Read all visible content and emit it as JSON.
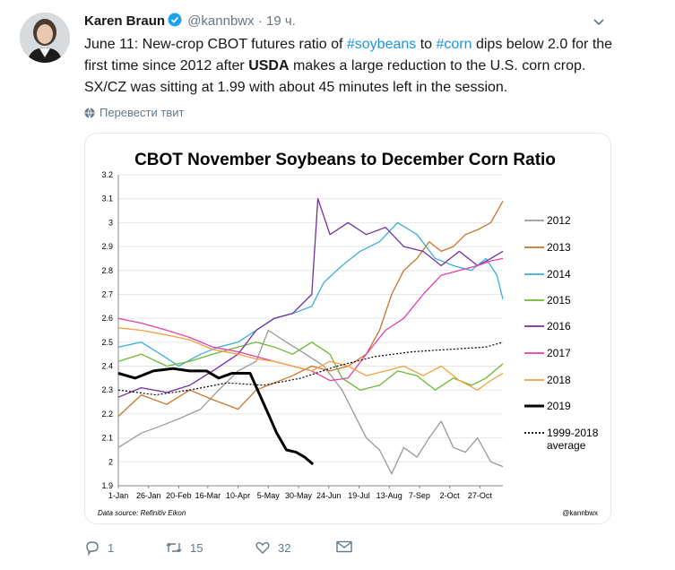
{
  "tweet": {
    "author_name": "Karen Braun",
    "handle": "@kannbwx",
    "time": "· 19 ч.",
    "text": {
      "p1": "June 11: New-crop CBOT futures ratio of ",
      "tag1": "#soybeans",
      "p2": " to ",
      "tag2": "#corn",
      "p3": " dips below 2.0 for the first time since 2012 after ",
      "bold": "USDA",
      "p4": " makes a large reduction to the U.S. corn crop. SX/CZ was sitting at 1.99 with about 45 minutes left in the session."
    },
    "translate_label": "Перевести твит",
    "actions": {
      "replies": "1",
      "retweets": "15",
      "likes": "32"
    }
  },
  "colors": {
    "link": "#1b95e0",
    "muted": "#657786",
    "verified": "#1da1f2"
  },
  "chart_data": {
    "type": "line",
    "title": "CBOT November Soybeans to December Corn Ratio",
    "source": "Data source: Refinitiv Eikon",
    "credit": "@kannbwx",
    "ylim": [
      1.9,
      3.2
    ],
    "yticks": [
      "1.9",
      "2",
      "2.1",
      "2.2",
      "2.3",
      "2.4",
      "2.5",
      "2.6",
      "2.7",
      "2.8",
      "2.9",
      "3",
      "3.1",
      "3.2"
    ],
    "xticks": [
      "1-Jan",
      "26-Jan",
      "20-Feb",
      "16-Mar",
      "10-Apr",
      "5-May",
      "30-May",
      "24-Jun",
      "19-Jul",
      "13-Aug",
      "7-Sep",
      "2-Oct",
      "27-Oct"
    ],
    "x_start": "2019-01-01",
    "x_end": "2019-11-15",
    "legend_position": "right",
    "series": [
      {
        "name": "2012",
        "color": "#999999",
        "width": 1.3,
        "dash": "",
        "points": [
          [
            "01-01",
            2.06
          ],
          [
            "01-20",
            2.12
          ],
          [
            "02-05",
            2.15
          ],
          [
            "02-20",
            2.18
          ],
          [
            "03-10",
            2.22
          ],
          [
            "03-25",
            2.3
          ],
          [
            "04-10",
            2.38
          ],
          [
            "04-25",
            2.42
          ],
          [
            "05-05",
            2.55
          ],
          [
            "05-20",
            2.5
          ],
          [
            "06-05",
            2.45
          ],
          [
            "06-20",
            2.4
          ],
          [
            "07-05",
            2.3
          ],
          [
            "07-15",
            2.2
          ],
          [
            "07-25",
            2.1
          ],
          [
            "08-05",
            2.05
          ],
          [
            "08-15",
            1.95
          ],
          [
            "08-25",
            2.06
          ],
          [
            "09-05",
            2.02
          ],
          [
            "09-15",
            2.1
          ],
          [
            "09-25",
            2.17
          ],
          [
            "10-05",
            2.06
          ],
          [
            "10-15",
            2.04
          ],
          [
            "10-25",
            2.1
          ],
          [
            "11-05",
            2.0
          ],
          [
            "11-15",
            1.98
          ]
        ]
      },
      {
        "name": "2013",
        "color": "#c8752b",
        "width": 1.3,
        "dash": "",
        "points": [
          [
            "01-01",
            2.19
          ],
          [
            "01-20",
            2.28
          ],
          [
            "02-10",
            2.24
          ],
          [
            "03-01",
            2.3
          ],
          [
            "03-20",
            2.26
          ],
          [
            "04-10",
            2.22
          ],
          [
            "04-25",
            2.3
          ],
          [
            "05-10",
            2.33
          ],
          [
            "05-25",
            2.36
          ],
          [
            "06-10",
            2.4
          ],
          [
            "06-25",
            2.38
          ],
          [
            "07-10",
            2.4
          ],
          [
            "07-25",
            2.45
          ],
          [
            "08-05",
            2.55
          ],
          [
            "08-15",
            2.7
          ],
          [
            "08-25",
            2.8
          ],
          [
            "09-05",
            2.85
          ],
          [
            "09-15",
            2.92
          ],
          [
            "09-25",
            2.88
          ],
          [
            "10-05",
            2.9
          ],
          [
            "10-15",
            2.95
          ],
          [
            "10-25",
            2.97
          ],
          [
            "11-05",
            3.0
          ],
          [
            "11-15",
            3.09
          ]
        ]
      },
      {
        "name": "2014",
        "color": "#3aaed8",
        "width": 1.3,
        "dash": "",
        "points": [
          [
            "01-01",
            2.48
          ],
          [
            "01-20",
            2.5
          ],
          [
            "02-05",
            2.45
          ],
          [
            "02-20",
            2.4
          ],
          [
            "03-10",
            2.45
          ],
          [
            "03-25",
            2.48
          ],
          [
            "04-10",
            2.5
          ],
          [
            "04-25",
            2.55
          ],
          [
            "05-10",
            2.6
          ],
          [
            "05-25",
            2.62
          ],
          [
            "06-10",
            2.65
          ],
          [
            "06-20",
            2.75
          ],
          [
            "07-05",
            2.82
          ],
          [
            "07-20",
            2.88
          ],
          [
            "08-05",
            2.92
          ],
          [
            "08-20",
            3.0
          ],
          [
            "09-05",
            2.95
          ],
          [
            "09-20",
            2.85
          ],
          [
            "10-05",
            2.82
          ],
          [
            "10-20",
            2.8
          ],
          [
            "11-01",
            2.85
          ],
          [
            "11-10",
            2.78
          ],
          [
            "11-15",
            2.68
          ]
        ]
      },
      {
        "name": "2015",
        "color": "#6ab934",
        "width": 1.3,
        "dash": "",
        "points": [
          [
            "01-01",
            2.42
          ],
          [
            "01-20",
            2.45
          ],
          [
            "02-10",
            2.4
          ],
          [
            "03-01",
            2.42
          ],
          [
            "03-20",
            2.45
          ],
          [
            "04-10",
            2.48
          ],
          [
            "04-25",
            2.5
          ],
          [
            "05-10",
            2.48
          ],
          [
            "05-25",
            2.45
          ],
          [
            "06-10",
            2.5
          ],
          [
            "06-25",
            2.45
          ],
          [
            "07-05",
            2.35
          ],
          [
            "07-20",
            2.3
          ],
          [
            "08-05",
            2.32
          ],
          [
            "08-20",
            2.38
          ],
          [
            "09-05",
            2.36
          ],
          [
            "09-20",
            2.3
          ],
          [
            "10-05",
            2.35
          ],
          [
            "10-20",
            2.32
          ],
          [
            "11-01",
            2.35
          ],
          [
            "11-15",
            2.41
          ]
        ]
      },
      {
        "name": "2016",
        "color": "#7030a0",
        "width": 1.3,
        "dash": "",
        "points": [
          [
            "01-01",
            2.27
          ],
          [
            "01-20",
            2.31
          ],
          [
            "02-10",
            2.29
          ],
          [
            "03-01",
            2.32
          ],
          [
            "03-20",
            2.38
          ],
          [
            "04-10",
            2.45
          ],
          [
            "04-25",
            2.55
          ],
          [
            "05-10",
            2.6
          ],
          [
            "05-25",
            2.62
          ],
          [
            "06-10",
            2.7
          ],
          [
            "06-15",
            3.1
          ],
          [
            "06-25",
            2.95
          ],
          [
            "07-10",
            3.0
          ],
          [
            "07-25",
            2.95
          ],
          [
            "08-10",
            2.98
          ],
          [
            "08-25",
            2.9
          ],
          [
            "09-10",
            2.88
          ],
          [
            "09-25",
            2.82
          ],
          [
            "10-10",
            2.88
          ],
          [
            "10-25",
            2.82
          ],
          [
            "11-05",
            2.85
          ],
          [
            "11-15",
            2.88
          ]
        ]
      },
      {
        "name": "2017",
        "color": "#e63fa6",
        "width": 1.3,
        "dash": "",
        "points": [
          [
            "01-01",
            2.6
          ],
          [
            "01-20",
            2.58
          ],
          [
            "02-10",
            2.55
          ],
          [
            "03-01",
            2.52
          ],
          [
            "03-20",
            2.48
          ],
          [
            "04-10",
            2.46
          ],
          [
            "04-25",
            2.44
          ],
          [
            "05-10",
            2.42
          ],
          [
            "05-25",
            2.4
          ],
          [
            "06-10",
            2.38
          ],
          [
            "06-25",
            2.34
          ],
          [
            "07-10",
            2.35
          ],
          [
            "07-25",
            2.45
          ],
          [
            "08-10",
            2.55
          ],
          [
            "08-25",
            2.6
          ],
          [
            "09-10",
            2.7
          ],
          [
            "09-25",
            2.78
          ],
          [
            "10-10",
            2.8
          ],
          [
            "10-25",
            2.82
          ],
          [
            "11-05",
            2.84
          ],
          [
            "11-15",
            2.85
          ]
        ]
      },
      {
        "name": "2018",
        "color": "#f5a040",
        "width": 1.3,
        "dash": "",
        "points": [
          [
            "01-01",
            2.56
          ],
          [
            "01-20",
            2.55
          ],
          [
            "02-10",
            2.53
          ],
          [
            "03-01",
            2.51
          ],
          [
            "03-20",
            2.47
          ],
          [
            "04-10",
            2.45
          ],
          [
            "04-25",
            2.43
          ],
          [
            "05-10",
            2.42
          ],
          [
            "05-25",
            2.4
          ],
          [
            "06-10",
            2.38
          ],
          [
            "06-25",
            2.42
          ],
          [
            "07-10",
            2.4
          ],
          [
            "07-25",
            2.36
          ],
          [
            "08-10",
            2.38
          ],
          [
            "08-25",
            2.4
          ],
          [
            "09-10",
            2.36
          ],
          [
            "09-25",
            2.4
          ],
          [
            "10-10",
            2.34
          ],
          [
            "10-25",
            2.3
          ],
          [
            "11-05",
            2.34
          ],
          [
            "11-15",
            2.37
          ]
        ]
      },
      {
        "name": "2019",
        "color": "#000000",
        "width": 3,
        "dash": "",
        "points": [
          [
            "01-01",
            2.37
          ],
          [
            "01-15",
            2.35
          ],
          [
            "01-30",
            2.38
          ],
          [
            "02-15",
            2.39
          ],
          [
            "03-01",
            2.38
          ],
          [
            "03-15",
            2.38
          ],
          [
            "03-25",
            2.35
          ],
          [
            "04-05",
            2.37
          ],
          [
            "04-20",
            2.37
          ],
          [
            "04-28",
            2.28
          ],
          [
            "05-05",
            2.2
          ],
          [
            "05-12",
            2.12
          ],
          [
            "05-20",
            2.05
          ],
          [
            "05-28",
            2.04
          ],
          [
            "06-04",
            2.02
          ],
          [
            "06-11",
            1.99
          ]
        ]
      },
      {
        "name": "1999-2018 average",
        "color": "#000000",
        "width": 1.2,
        "dash": "2,2",
        "points": [
          [
            "01-01",
            2.3
          ],
          [
            "02-01",
            2.28
          ],
          [
            "03-01",
            2.3
          ],
          [
            "04-01",
            2.33
          ],
          [
            "05-01",
            2.32
          ],
          [
            "06-01",
            2.35
          ],
          [
            "07-01",
            2.4
          ],
          [
            "08-01",
            2.44
          ],
          [
            "09-01",
            2.46
          ],
          [
            "10-01",
            2.47
          ],
          [
            "11-01",
            2.48
          ],
          [
            "11-15",
            2.5
          ]
        ]
      }
    ]
  }
}
